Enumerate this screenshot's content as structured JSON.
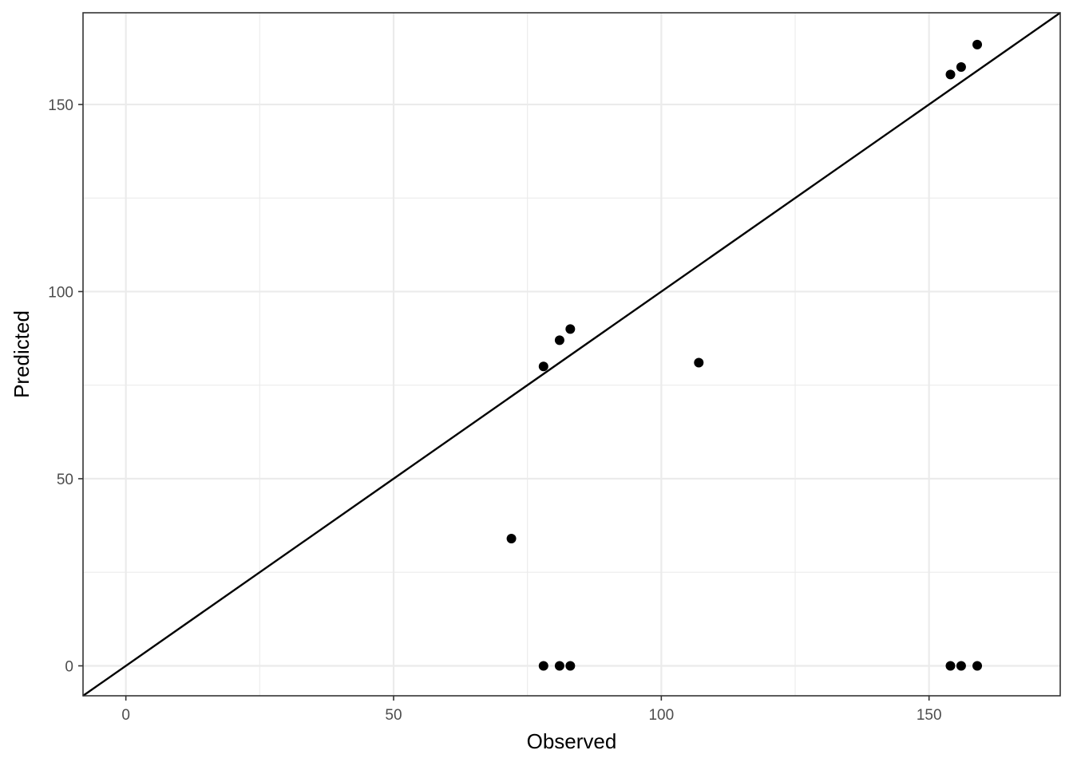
{
  "chart_data": {
    "type": "scatter",
    "title": "",
    "xlabel": "Observed",
    "ylabel": "Predicted",
    "xlim": [
      -8,
      174.5
    ],
    "ylim": [
      -8,
      174.5
    ],
    "x_ticks": [
      0,
      50,
      100,
      150
    ],
    "y_ticks": [
      0,
      50,
      100,
      150
    ],
    "x_tick_labels": [
      "0",
      "50",
      "100",
      "150"
    ],
    "y_tick_labels": [
      "0",
      "50",
      "100",
      "150"
    ],
    "x_minor_gridlines": [
      25,
      75,
      125
    ],
    "y_minor_gridlines": [
      25,
      75,
      125
    ],
    "grid": true,
    "reference_line": {
      "slope": 1,
      "intercept": 0
    },
    "point_color": "#000000",
    "points": [
      {
        "x": 72,
        "y": 34
      },
      {
        "x": 78,
        "y": 80
      },
      {
        "x": 81,
        "y": 87
      },
      {
        "x": 83,
        "y": 90
      },
      {
        "x": 107,
        "y": 81
      },
      {
        "x": 78,
        "y": 0
      },
      {
        "x": 81,
        "y": 0
      },
      {
        "x": 83,
        "y": 0
      },
      {
        "x": 154,
        "y": 158
      },
      {
        "x": 156,
        "y": 160
      },
      {
        "x": 159,
        "y": 166
      },
      {
        "x": 154,
        "y": 0
      },
      {
        "x": 156,
        "y": 0
      },
      {
        "x": 159,
        "y": 0
      }
    ]
  }
}
